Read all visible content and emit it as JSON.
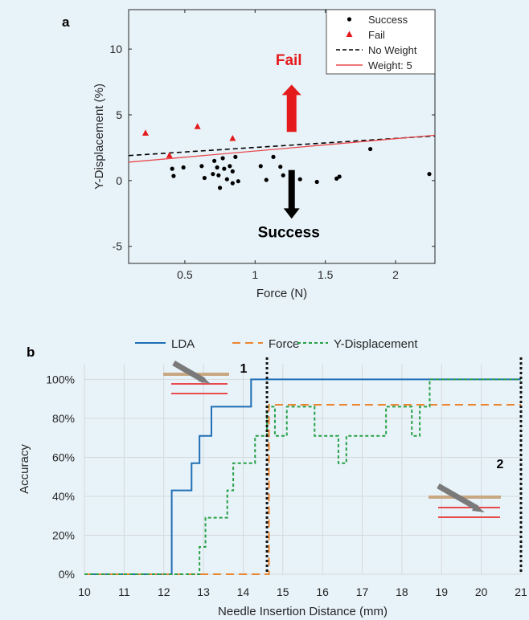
{
  "chart_data": [
    {
      "panel": "a",
      "type": "scatter",
      "xlabel": "Force (N)",
      "ylabel": "Y-Displacement (%)",
      "xlim": [
        0.1,
        2.28
      ],
      "ylim": [
        -6.3,
        13
      ],
      "xticks": [
        0.5,
        1,
        1.5,
        2
      ],
      "xtick_labels": [
        "0.5",
        "1",
        "1.5",
        "2"
      ],
      "yticks": [
        -5,
        0,
        5,
        10
      ],
      "ytick_labels": [
        "-5",
        "0",
        "5",
        "10"
      ],
      "grid": false,
      "legend_placement": "top-right",
      "legend": [
        "Success",
        "Fail",
        "No Weight",
        "Weight: 5"
      ],
      "series": [
        {
          "name": "Success",
          "kind": "points",
          "color": "#000000",
          "x": [
            0.41,
            0.42,
            0.49,
            0.62,
            0.64,
            0.7,
            0.71,
            0.73,
            0.74,
            0.75,
            0.77,
            0.78,
            0.8,
            0.82,
            0.84,
            0.84,
            0.86,
            0.88,
            1.04,
            1.08,
            1.13,
            1.18,
            1.2,
            1.32,
            1.44,
            1.58,
            1.6,
            1.82,
            2.24
          ],
          "y": [
            0.9,
            0.35,
            1.0,
            1.1,
            0.2,
            0.5,
            1.5,
            1.0,
            0.4,
            -0.55,
            1.7,
            0.9,
            0.1,
            1.1,
            -0.2,
            0.7,
            1.8,
            -0.05,
            1.1,
            0.05,
            1.8,
            1.05,
            0.4,
            0.1,
            -0.1,
            0.15,
            0.3,
            2.4,
            0.5
          ]
        },
        {
          "name": "Fail",
          "kind": "points",
          "color": "#e41a1c",
          "x": [
            0.22,
            0.39,
            0.59,
            0.84
          ],
          "y": [
            3.6,
            1.9,
            4.1,
            3.2
          ]
        },
        {
          "name": "No Weight",
          "kind": "line",
          "color": "#000000",
          "x": [
            0.1,
            2.28
          ],
          "y": [
            1.9,
            3.4
          ]
        },
        {
          "name": "Weight: 5",
          "kind": "line",
          "color": "#e8494d",
          "x": [
            0.1,
            2.28
          ],
          "y": [
            1.4,
            3.45
          ]
        }
      ],
      "annotations": [
        {
          "text": "Fail",
          "color": "#e41a1c",
          "x": 1.24,
          "y": 8.8
        },
        {
          "text": "Success",
          "color": "#000000",
          "x": 1.24,
          "y": -4.3
        }
      ],
      "arrows": [
        {
          "direction": "up",
          "color": "#e41a1c",
          "x": 1.26,
          "y_from": 3.7,
          "y_to": 7.3
        },
        {
          "direction": "down",
          "color": "#000000",
          "x": 1.26,
          "y_from": 0.8,
          "y_to": -2.9
        }
      ]
    },
    {
      "panel": "b",
      "type": "line",
      "xlabel": "Needle Insertion Distance (mm)",
      "ylabel": "Accuracy",
      "xlim": [
        10,
        21
      ],
      "ylim": [
        0,
        1.08
      ],
      "xticks": [
        10,
        11,
        12,
        13,
        14,
        15,
        16,
        17,
        18,
        19,
        20,
        21
      ],
      "xtick_labels": [
        "10",
        "11",
        "12",
        "13",
        "14",
        "15",
        "16",
        "17",
        "18",
        "19",
        "20",
        "21"
      ],
      "yticks": [
        0,
        0.2,
        0.4,
        0.6,
        0.8,
        1.0
      ],
      "ytick_labels": [
        "0%",
        "20%",
        "40%",
        "60%",
        "80%",
        "100%"
      ],
      "grid": true,
      "legend_placement": "top",
      "legend": [
        "LDA",
        "Force",
        "Y-Displacement"
      ],
      "vlines": [
        {
          "x": 14.6,
          "label": "1"
        },
        {
          "x": 21.0,
          "label": "2"
        }
      ],
      "series": [
        {
          "name": "LDA",
          "color": "#1f6eb4",
          "dash": "solid",
          "steps": [
            [
              10,
              0
            ],
            [
              12.2,
              0.43
            ],
            [
              12.7,
              0.57
            ],
            [
              12.9,
              0.71
            ],
            [
              13.2,
              0.86
            ],
            [
              14.2,
              1.0
            ],
            [
              21,
              1.0
            ]
          ]
        },
        {
          "name": "Force",
          "color": "#ec8530",
          "dash": "long",
          "steps": [
            [
              10,
              0
            ],
            [
              14.65,
              0.87
            ],
            [
              21,
              0.87
            ]
          ]
        },
        {
          "name": "Y-Displacement",
          "color": "#27a046",
          "dash": "short",
          "steps": [
            [
              10,
              0
            ],
            [
              12.9,
              0.14
            ],
            [
              13.05,
              0.29
            ],
            [
              13.6,
              0.43
            ],
            [
              13.75,
              0.57
            ],
            [
              14.3,
              0.71
            ],
            [
              14.6,
              0.86
            ],
            [
              14.8,
              0.71
            ],
            [
              15.1,
              0.86
            ],
            [
              15.8,
              0.71
            ],
            [
              16.4,
              0.57
            ],
            [
              16.6,
              0.71
            ],
            [
              17.6,
              0.86
            ],
            [
              18.25,
              0.71
            ],
            [
              18.45,
              0.86
            ],
            [
              18.7,
              1.0
            ],
            [
              21,
              1.0
            ]
          ]
        }
      ]
    }
  ],
  "panels": {
    "a_label": "a",
    "b_label": "b"
  }
}
